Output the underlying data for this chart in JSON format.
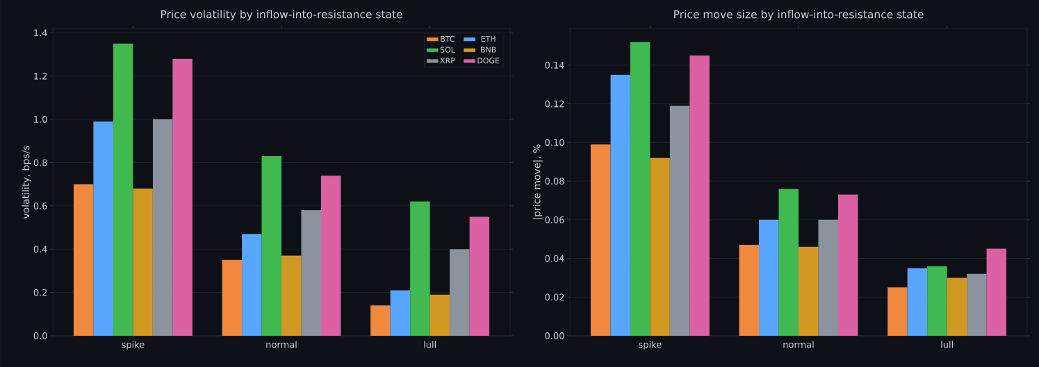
{
  "chart_data": [
    {
      "type": "bar",
      "title": "Price volatility by inflow-into-resistance state",
      "ylabel": "volatility, bps/s",
      "categories": [
        "spike",
        "normal",
        "lull"
      ],
      "series": [
        {
          "name": "BTC",
          "color": "#f0883e",
          "values": [
            0.7,
            0.35,
            0.14
          ]
        },
        {
          "name": "ETH",
          "color": "#58a6ff",
          "values": [
            0.99,
            0.47,
            0.21
          ]
        },
        {
          "name": "SOL",
          "color": "#3fb950",
          "values": [
            1.35,
            0.83,
            0.62
          ]
        },
        {
          "name": "BNB",
          "color": "#d29922",
          "values": [
            0.68,
            0.37,
            0.19
          ]
        },
        {
          "name": "XRP",
          "color": "#8b949e",
          "values": [
            1.0,
            0.58,
            0.4
          ]
        },
        {
          "name": "DOGE",
          "color": "#db61a2",
          "values": [
            1.28,
            0.74,
            0.55
          ]
        }
      ],
      "ylim": [
        0,
        1.42
      ],
      "yticks": [
        {
          "value": 0,
          "label": "0.0"
        },
        {
          "value": 0.2,
          "label": "0.2"
        },
        {
          "value": 0.4,
          "label": "0.4"
        },
        {
          "value": 0.6,
          "label": "0.6"
        },
        {
          "value": 0.8,
          "label": "0.8"
        },
        {
          "value": 1.0,
          "label": "1.0"
        },
        {
          "value": 1.2,
          "label": "1.2"
        },
        {
          "value": 1.4,
          "label": "1.4"
        }
      ],
      "grid": "y",
      "legend": "top right"
    },
    {
      "type": "bar",
      "title": "Price move size by inflow-into-resistance state",
      "ylabel": "|price move|, %",
      "categories": [
        "spike",
        "normal",
        "lull"
      ],
      "series": [
        {
          "color": "#f0883e",
          "values": [
            0.099,
            0.047,
            0.025
          ]
        },
        {
          "color": "#58a6ff",
          "values": [
            0.135,
            0.06,
            0.035
          ]
        },
        {
          "color": "#3fb950",
          "values": [
            0.152,
            0.076,
            0.036
          ]
        },
        {
          "color": "#d29922",
          "values": [
            0.092,
            0.046,
            0.03
          ]
        },
        {
          "color": "#8b949e",
          "values": [
            0.119,
            0.06,
            0.032
          ]
        },
        {
          "color": "#db61a2",
          "values": [
            0.145,
            0.073,
            0.045
          ]
        }
      ],
      "ylim": [
        0,
        0.159
      ],
      "yticks": [
        {
          "value": 0,
          "label": "0.00"
        },
        {
          "value": 0.02,
          "label": "0.02"
        },
        {
          "value": 0.04,
          "label": "0.04"
        },
        {
          "value": 0.06,
          "label": "0.06"
        },
        {
          "value": 0.08,
          "label": "0.08"
        },
        {
          "value": 0.1,
          "label": "0.10"
        },
        {
          "value": 0.12,
          "label": "0.12"
        },
        {
          "value": 0.14,
          "label": "0.14"
        }
      ],
      "grid": "y"
    }
  ]
}
